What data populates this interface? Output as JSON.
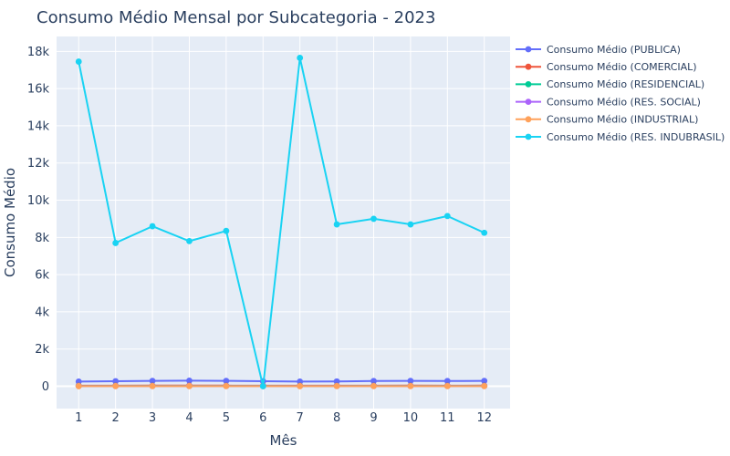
{
  "chart_data": {
    "type": "line",
    "title": "Consumo Médio Mensal por Subcategoria - 2023",
    "xlabel": "Mês",
    "ylabel": "Consumo Médio",
    "x": [
      1,
      2,
      3,
      4,
      5,
      6,
      7,
      8,
      9,
      10,
      11,
      12
    ],
    "x_tick_labels": [
      "1",
      "2",
      "3",
      "4",
      "5",
      "6",
      "7",
      "8",
      "9",
      "10",
      "11",
      "12"
    ],
    "y_ticks": [
      0,
      2000,
      4000,
      6000,
      8000,
      10000,
      12000,
      14000,
      16000,
      18000
    ],
    "y_tick_labels": [
      "0",
      "2k",
      "4k",
      "6k",
      "8k",
      "10k",
      "12k",
      "14k",
      "16k",
      "18k"
    ],
    "xlim": [
      0.4,
      12.7
    ],
    "ylim": [
      -1200,
      18800
    ],
    "grid": true,
    "legend_position": "top-right outside",
    "series": [
      {
        "name": "Consumo Médio (PUBLICA)",
        "color": "#636efa",
        "values": [
          250,
          270,
          290,
          300,
          290,
          270,
          250,
          260,
          280,
          290,
          280,
          290
        ]
      },
      {
        "name": "Consumo Médio (COMERCIAL)",
        "color": "#ef553b",
        "values": [
          30,
          32,
          33,
          34,
          33,
          32,
          30,
          31,
          32,
          33,
          32,
          33
        ]
      },
      {
        "name": "Consumo Médio (RESIDENCIAL)",
        "color": "#00cc96",
        "values": [
          18,
          19,
          20,
          20,
          19,
          19,
          18,
          18,
          19,
          20,
          19,
          19
        ]
      },
      {
        "name": "Consumo Médio (RES. SOCIAL)",
        "color": "#ab63fa",
        "values": [
          14,
          15,
          15,
          16,
          15,
          15,
          14,
          14,
          15,
          15,
          15,
          15
        ]
      },
      {
        "name": "Consumo Médio (INDUSTRIAL)",
        "color": "#ffa15a",
        "values": [
          5,
          6,
          6,
          6,
          6,
          5,
          5,
          6,
          6,
          6,
          6,
          6
        ]
      },
      {
        "name": "Consumo Médio (RES. INDUBRASIL)",
        "color": "#19d3f3",
        "values": [
          17450,
          7700,
          8600,
          7800,
          8350,
          0,
          17650,
          8700,
          9000,
          8700,
          9150,
          8250
        ]
      }
    ]
  }
}
